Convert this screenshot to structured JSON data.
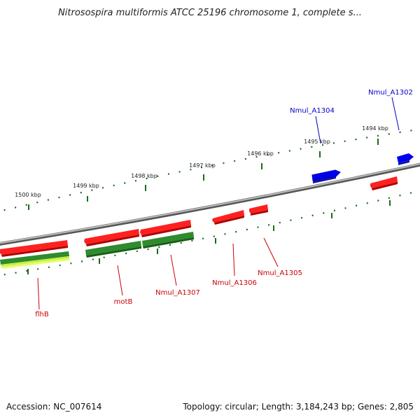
{
  "title": "Nitrosospira multiformis ATCC 25196 chromosome 1, complete s...",
  "ruler": {
    "labels": [
      "1500 kbp",
      "1499 kbp",
      "1498 kbp",
      "1497 kbp",
      "1496 kbp",
      "1495 kbp",
      "1494 kbp"
    ]
  },
  "genes": {
    "flhB": "flhB",
    "motB": "motB",
    "nmul_a1307": "Nmul_A1307",
    "nmul_a1306": "Nmul_A1306",
    "nmul_a1305": "Nmul_A1305",
    "nmul_a1304": "Nmul_A1304",
    "nmul_a1302": "Nmul_A1302"
  },
  "colors": {
    "reverse_strand_gene": "#ff0000",
    "forward_strand_gene": "#0000ee",
    "rna_gene": "#2e8b2e",
    "highlight": "#ccff44",
    "backbone": "#888888",
    "ticks": "#1a6b1a"
  },
  "footer": {
    "accession": "Accession: NC_007614",
    "topology": "Topology: circular; Length: 3,184,243 bp; Genes: 2,805"
  }
}
